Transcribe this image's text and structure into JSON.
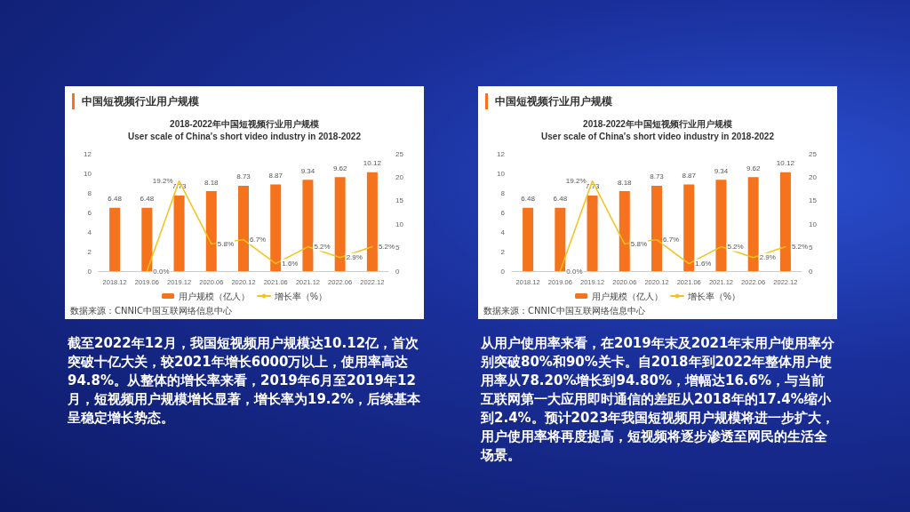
{
  "chart_data": [
    {
      "type": "bar",
      "title": "中国短视频行业用户规模",
      "subtitle": "2018-2022年中国短视频行业用户规模\nUser scale of China's short video industry in 2018-2022",
      "categories": [
        "2018.12",
        "2019.06",
        "2019.12",
        "2020.06",
        "2020.12",
        "2021.06",
        "2021.12",
        "2022.06",
        "2022.12"
      ],
      "series": [
        {
          "name": "用户规模（亿人）",
          "color": "#f5731c",
          "values": [
            6.48,
            6.48,
            7.73,
            8.18,
            8.73,
            8.87,
            9.34,
            9.62,
            10.12
          ],
          "value_labels": [
            "6.48",
            "6.48",
            "7.73",
            "8.18",
            "8.73",
            "8.87",
            "9.34",
            "9.62",
            "10.12"
          ]
        },
        {
          "name": "增长率（%）",
          "type": "line",
          "axis": "y2",
          "color": "#f5c21b",
          "values": [
            null,
            0.0,
            19.2,
            5.8,
            6.7,
            1.6,
            5.2,
            2.9,
            5.2
          ],
          "value_labels": [
            null,
            "0.0%",
            "19.2%",
            "5.8%",
            "6.7%",
            "1.6%",
            "5.2%",
            "2.9%",
            "5.2%"
          ]
        }
      ],
      "ylim": [
        0,
        12
      ],
      "yticks": [
        0,
        2,
        4,
        6,
        8,
        10,
        12
      ],
      "y2lim": [
        0,
        25
      ],
      "y2ticks": [
        0,
        5,
        10,
        15,
        20,
        25
      ],
      "grid": false,
      "legend": "bottom",
      "marker": "none",
      "line_style": "solid",
      "annotations": [
        "数据来源：CNNIC中国互联网络信息中心",
        "截至2022年12月，我国短视频用户规模达10.12亿，首次突破十亿大关，较2021年增长6000万以上，使用率高达94.8%。从整体的增长率来看，2019年6月至2019年12月，短视频用户规模增长显著，增长率为19.2%，后续基本呈稳定增长势态。"
      ]
    },
    {
      "type": "bar",
      "title": "中国短视频行业用户规模",
      "subtitle": "2018-2022年中国短视频行业用户规模\nUser scale of China's short video industry in 2018-2022",
      "categories": [
        "2018.12",
        "2019.06",
        "2019.12",
        "2020.06",
        "2020.12",
        "2021.06",
        "2021.12",
        "2022.06",
        "2022.12"
      ],
      "series": [
        {
          "name": "用户规模（亿人）",
          "color": "#f5731c",
          "values": [
            6.48,
            6.48,
            7.73,
            8.18,
            8.73,
            8.87,
            9.34,
            9.62,
            10.12
          ],
          "value_labels": [
            "6.48",
            "6.48",
            "7.73",
            "8.18",
            "8.73",
            "8.87",
            "9.34",
            "9.62",
            "10.12"
          ]
        },
        {
          "name": "增长率（%）",
          "type": "line",
          "axis": "y2",
          "color": "#f5c21b",
          "values": [
            null,
            0.0,
            19.2,
            5.8,
            6.7,
            1.6,
            5.2,
            2.9,
            5.2
          ],
          "value_labels": [
            null,
            "0.0%",
            "19.2%",
            "5.8%",
            "6.7%",
            "1.6%",
            "5.2%",
            "2.9%",
            "5.2%"
          ]
        }
      ],
      "ylim": [
        0,
        12
      ],
      "yticks": [
        0,
        2,
        4,
        6,
        8,
        10,
        12
      ],
      "y2lim": [
        0,
        25
      ],
      "y2ticks": [
        0,
        5,
        10,
        15,
        20,
        25
      ],
      "grid": false,
      "legend": "bottom",
      "marker": "none",
      "line_style": "solid",
      "annotations": [
        "数据来源：CNNIC中国互联网络信息中心",
        "从用户使用率来看，在2019年末及2021年末用户使用率分别突破80%和90%关卡。自2018年到2022年整体用户使用率从78.20%增长到94.80%，增幅达16.6%，与当前互联网第一大应用即时通信的差距从2018年的17.4%缩小到2.4%。预计2023年我国短视频用户规模将进一步扩大，用户使用率将再度提高，短视频将逐步渗透至网民的生活全场景。"
      ]
    }
  ]
}
